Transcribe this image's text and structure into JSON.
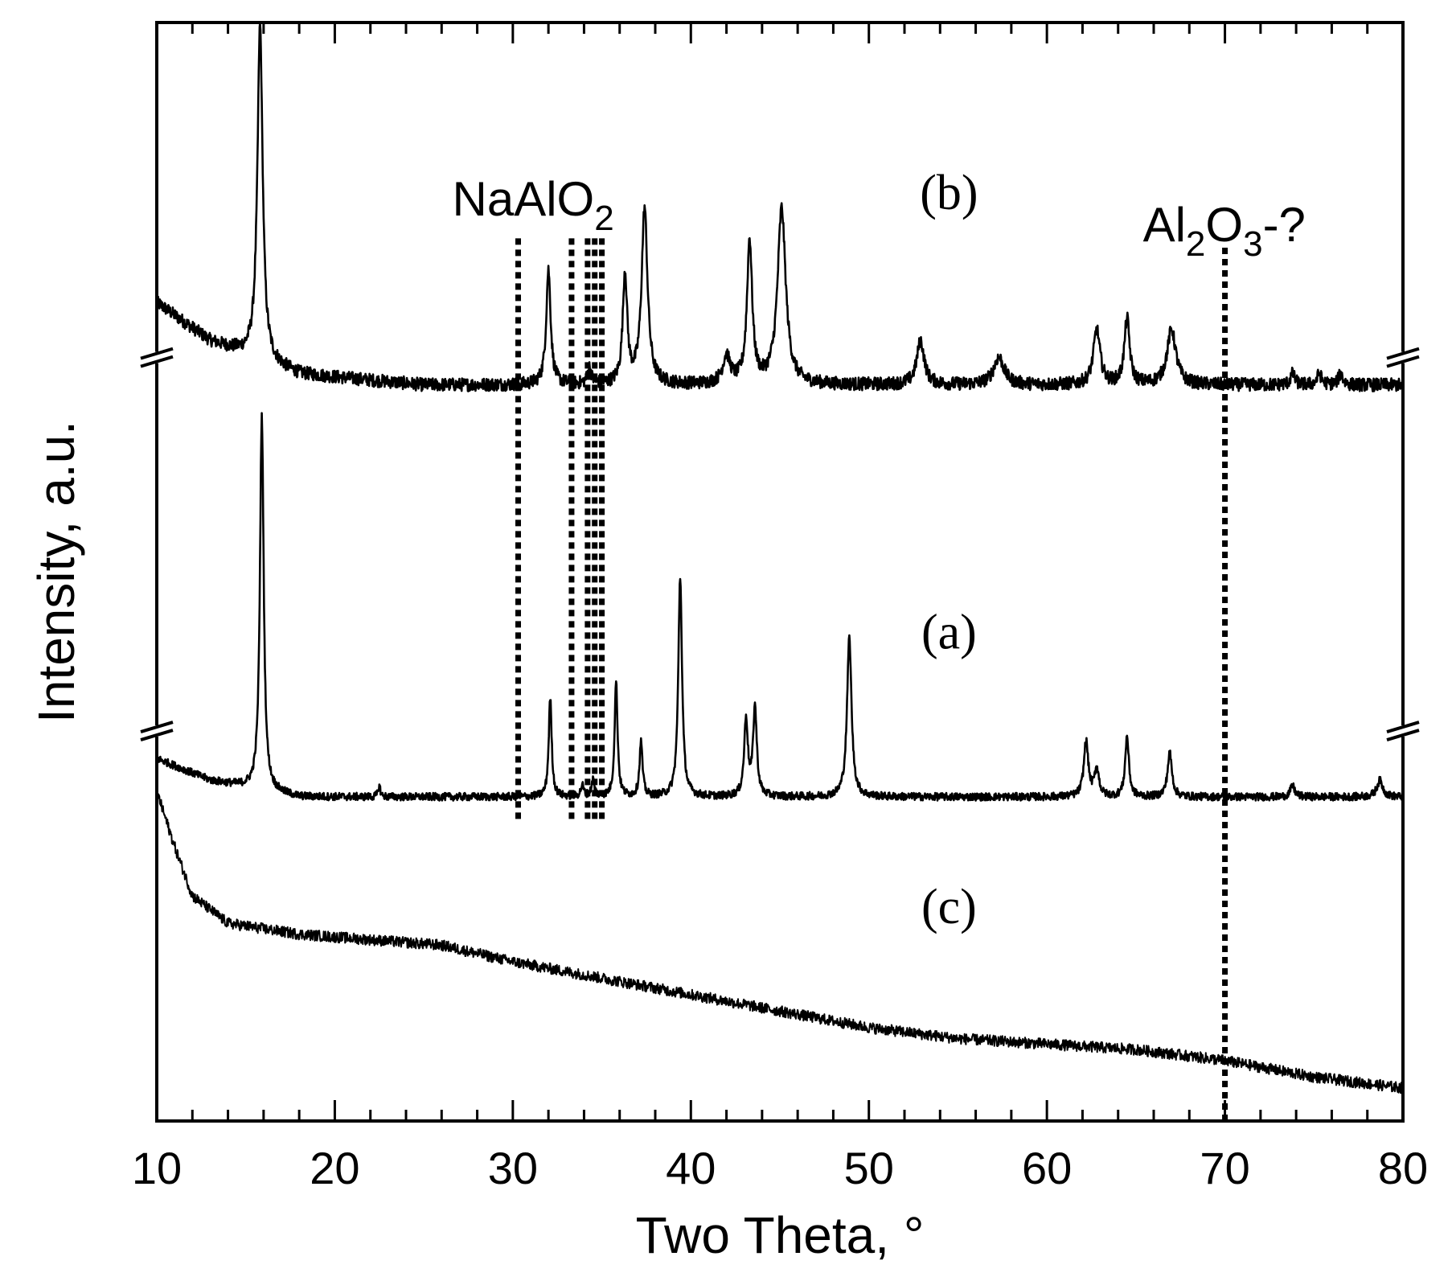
{
  "chart_data": {
    "type": "line",
    "xlabel": "Two Theta, °",
    "ylabel": "Intensity, a.u.",
    "xlim": [
      10,
      80
    ],
    "ylim": [
      0,
      100
    ],
    "x_ticks": [
      10,
      20,
      30,
      40,
      50,
      60,
      70,
      80
    ],
    "y_ticks_shown": false,
    "grid": false,
    "axis_breaks_y": [
      69.5,
      35.5
    ],
    "series": [
      {
        "name": "(b)",
        "baseline": [
          [
            10,
            74.5
          ],
          [
            13,
            71
          ],
          [
            18,
            68
          ],
          [
            25,
            67
          ],
          [
            40,
            67
          ],
          [
            60,
            67
          ],
          [
            80,
            67
          ]
        ],
        "noise": 0.6,
        "peaks": [
          [
            15.8,
            30.5,
            0.35
          ],
          [
            32.0,
            10.5,
            0.3
          ],
          [
            34.3,
            1.5,
            0.25
          ],
          [
            36.3,
            10,
            0.3
          ],
          [
            37.4,
            16,
            0.4
          ],
          [
            42.0,
            2.5,
            0.5
          ],
          [
            43.3,
            13,
            0.35
          ],
          [
            45.1,
            16,
            0.55
          ],
          [
            52.9,
            4,
            0.5
          ],
          [
            57.3,
            2.5,
            0.7
          ],
          [
            62.8,
            5,
            0.45
          ],
          [
            64.5,
            6,
            0.35
          ],
          [
            67.0,
            5,
            0.6
          ],
          [
            73.8,
            1,
            0.3
          ],
          [
            75.3,
            1,
            0.3
          ],
          [
            76.5,
            1,
            0.3
          ]
        ]
      },
      {
        "name": "(a)",
        "baseline": [
          [
            10,
            33
          ],
          [
            13,
            31
          ],
          [
            18,
            29.5
          ],
          [
            25,
            29.5
          ],
          [
            40,
            29.5
          ],
          [
            60,
            29.5
          ],
          [
            80,
            29.5
          ]
        ],
        "noise": 0.35,
        "peaks": [
          [
            15.9,
            34,
            0.25
          ],
          [
            22.5,
            1,
            0.15
          ],
          [
            32.1,
            9,
            0.2
          ],
          [
            33.9,
            1,
            0.2
          ],
          [
            34.5,
            1.5,
            0.2
          ],
          [
            35.8,
            10.5,
            0.2
          ],
          [
            37.2,
            5,
            0.2
          ],
          [
            39.4,
            20,
            0.25
          ],
          [
            43.1,
            7,
            0.25
          ],
          [
            43.6,
            8,
            0.25
          ],
          [
            48.9,
            14.5,
            0.3
          ],
          [
            62.2,
            5,
            0.3
          ],
          [
            62.8,
            2.5,
            0.3
          ],
          [
            64.5,
            5.5,
            0.25
          ],
          [
            66.9,
            4,
            0.3
          ],
          [
            73.8,
            1,
            0.3
          ],
          [
            78.7,
            1.5,
            0.4
          ]
        ]
      },
      {
        "name": "(c)",
        "baseline": [
          [
            10,
            30
          ],
          [
            11,
            25
          ],
          [
            12,
            20.5
          ],
          [
            14,
            18
          ],
          [
            18,
            17
          ],
          [
            22,
            16.5
          ],
          [
            26,
            16
          ],
          [
            30,
            14.5
          ],
          [
            35,
            13
          ],
          [
            40,
            11.5
          ],
          [
            45,
            10
          ],
          [
            50,
            8.5
          ],
          [
            55,
            7.5
          ],
          [
            60,
            7
          ],
          [
            65,
            6.5
          ],
          [
            70,
            5.5
          ],
          [
            75,
            4
          ],
          [
            80,
            3
          ]
        ],
        "noise": 0.5,
        "peaks": []
      }
    ],
    "reference_lines": [
      {
        "label": "NaAlO",
        "subscript": "2",
        "suffix": "",
        "x": [
          30.3,
          33.3,
          34.2,
          34.6,
          35.0
        ],
        "y_range": [
          27.5,
          80.5
        ]
      },
      {
        "label": "Al",
        "subscript": "2",
        "suffix": "-?",
        "x": [
          70.0
        ],
        "y_range": [
          0,
          79.5
        ]
      }
    ],
    "curve_labels": [
      {
        "text": "(b)",
        "x": 54.5,
        "y": 83
      },
      {
        "text": "(a)",
        "x": 54.5,
        "y": 43
      },
      {
        "text": "(c)",
        "x": 54.5,
        "y": 18
      }
    ]
  }
}
